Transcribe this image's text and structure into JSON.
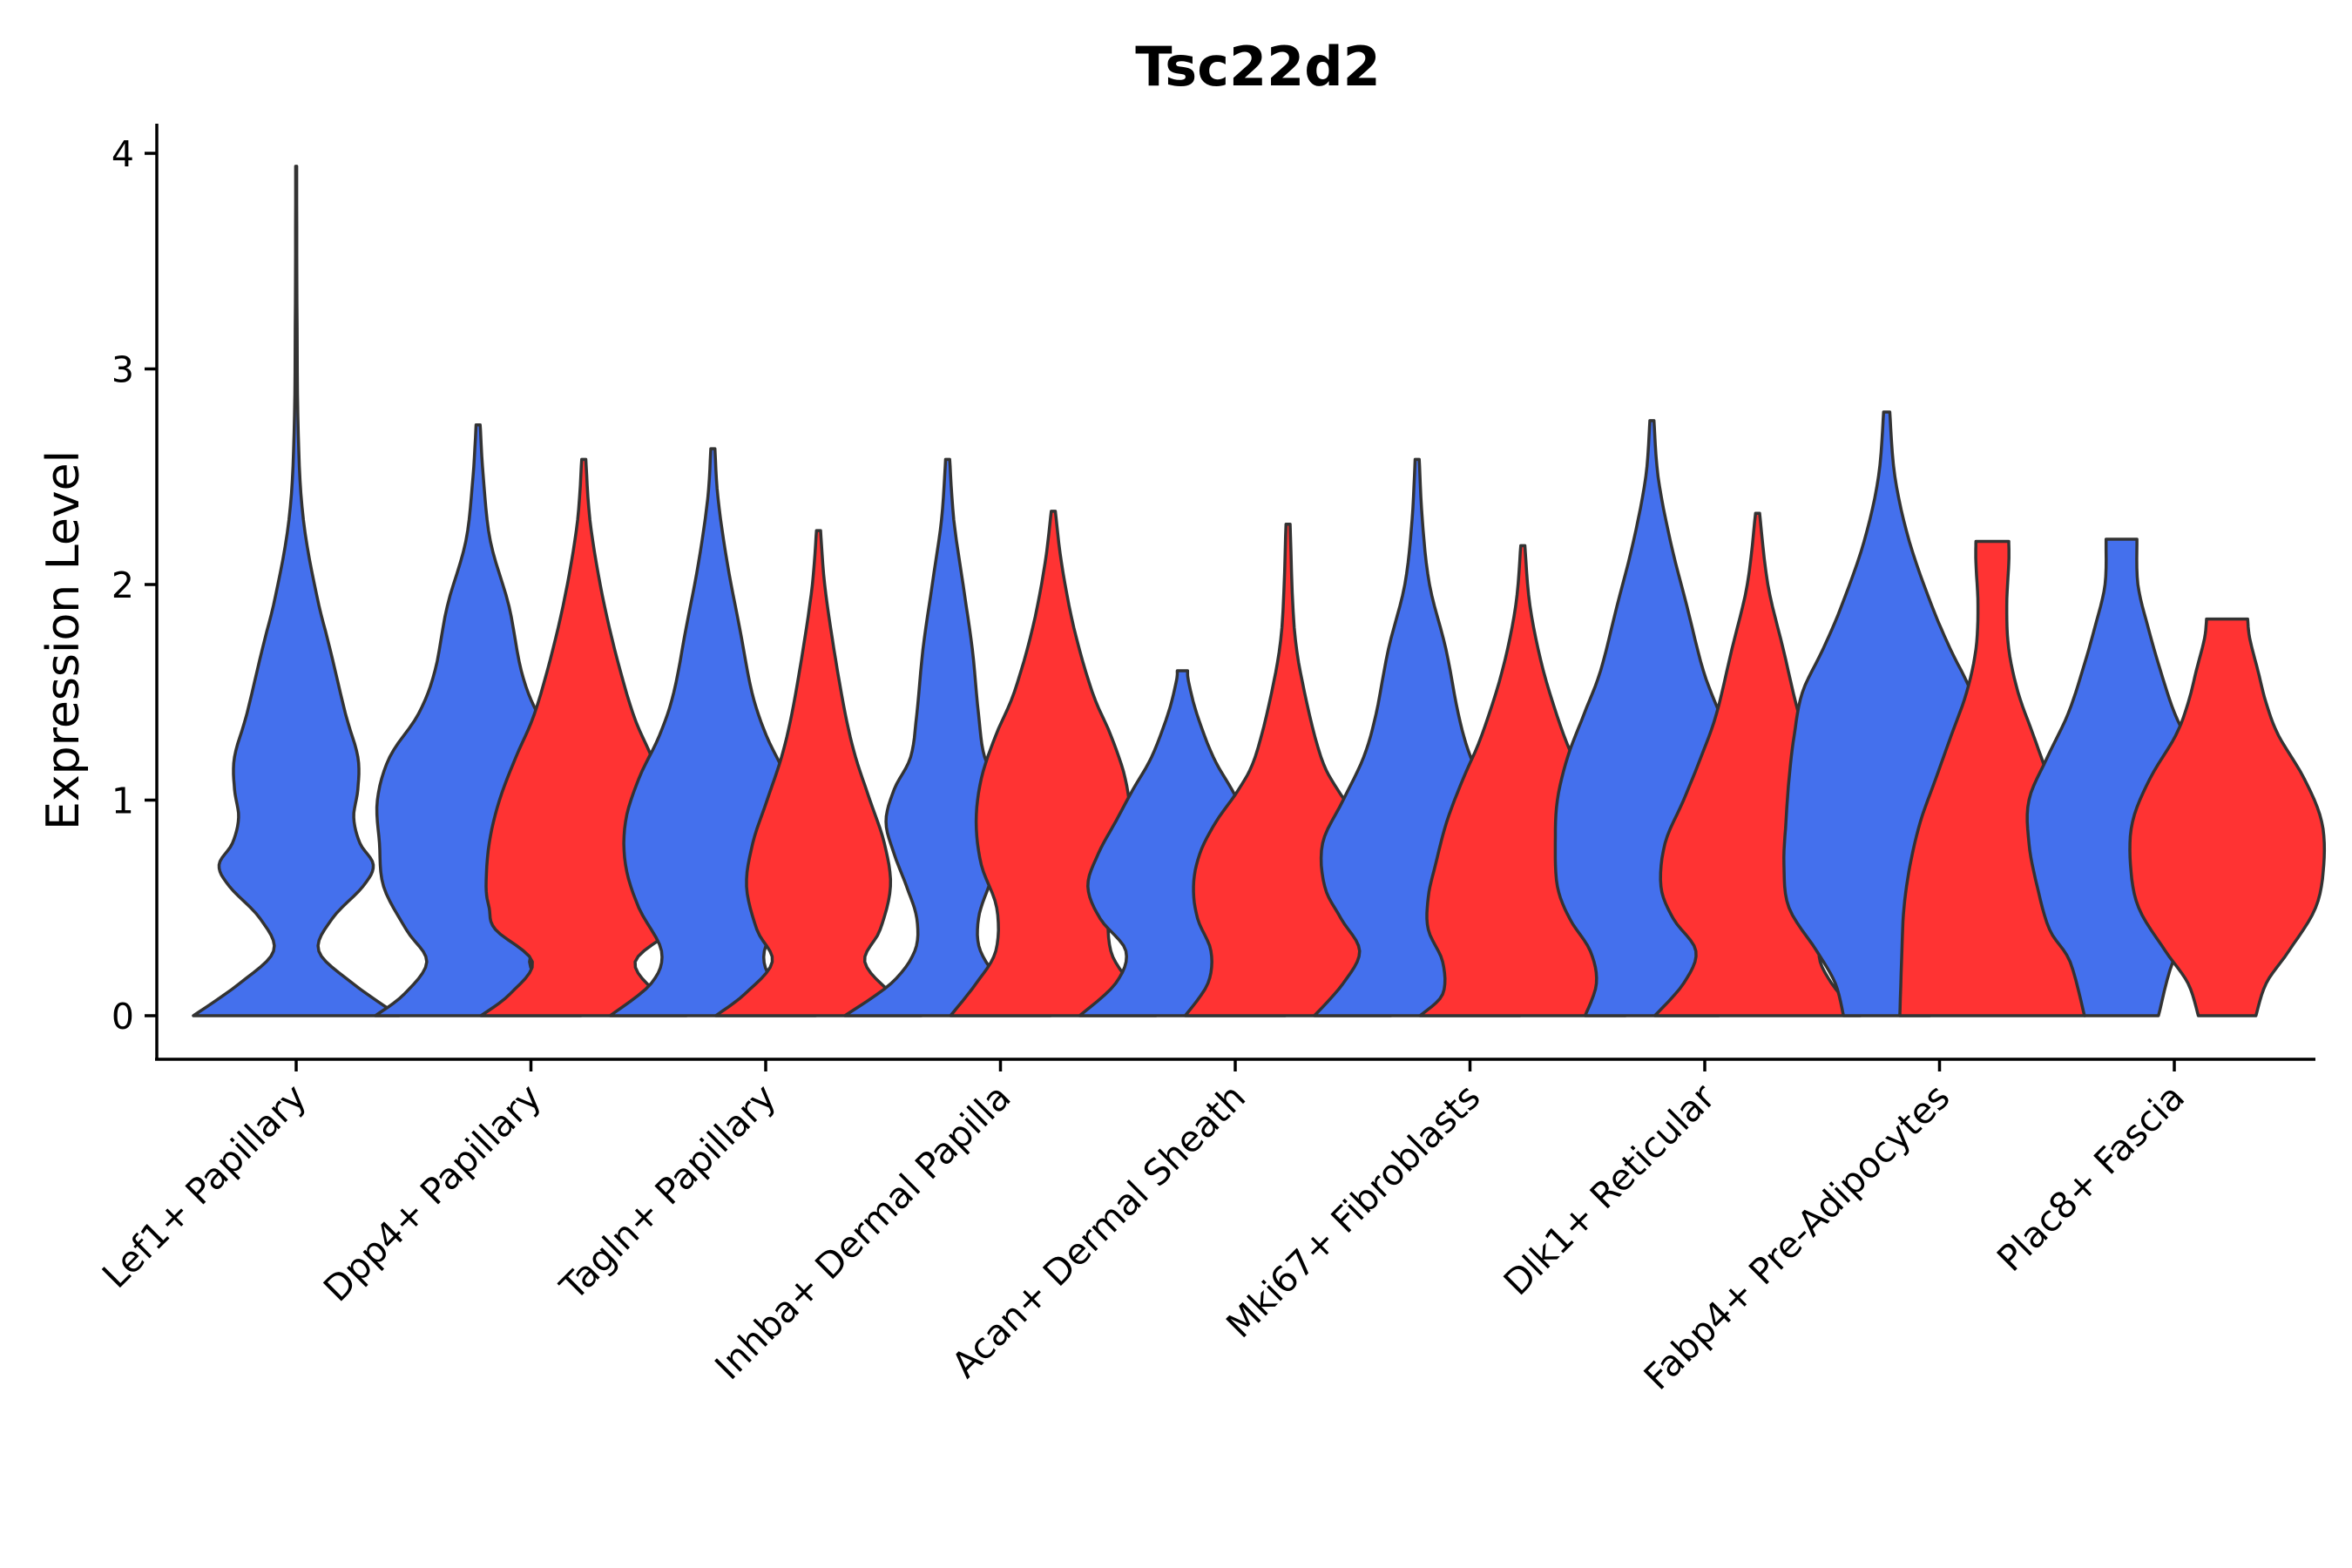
{
  "chart_data": {
    "type": "violin",
    "title": "Tsc22d2",
    "xlabel": "",
    "ylabel": "Expression Level",
    "ylim": [
      -0.2,
      4.1
    ],
    "yticks": [
      0,
      1,
      2,
      3,
      4
    ],
    "categories": [
      "Lef1+ Papillary",
      "Dpp4+ Papillary",
      "Tagln+ Papillary",
      "Inhba+ Dermal Papilla",
      "Acan+ Dermal Sheath",
      "Mki67+ Fibroblasts",
      "Dlk1+ Reticular",
      "Fabp4+ Pre-Adipocytes",
      "Plac8+ Fascia"
    ],
    "colors": {
      "blue": "#4470ED",
      "red": "#FF3333"
    },
    "grid": false,
    "legend": "none",
    "violins": [
      {
        "category_index": 0,
        "offset": 0.0,
        "color": "blue",
        "ymax": 3.94,
        "profile": [
          [
            0,
            1.0
          ],
          [
            0.15,
            0.55
          ],
          [
            0.3,
            0.22
          ],
          [
            0.45,
            0.35
          ],
          [
            0.6,
            0.65
          ],
          [
            0.7,
            0.75
          ],
          [
            0.8,
            0.62
          ],
          [
            0.92,
            0.56
          ],
          [
            1.05,
            0.6
          ],
          [
            1.2,
            0.6
          ],
          [
            1.4,
            0.48
          ],
          [
            1.7,
            0.33
          ],
          [
            1.95,
            0.2
          ],
          [
            2.3,
            0.07
          ],
          [
            2.7,
            0.02
          ],
          [
            3.3,
            0.008
          ],
          [
            3.94,
            0.005
          ]
        ]
      },
      {
        "category_index": 1,
        "offset": -0.225,
        "color": "blue",
        "ymax": 2.74,
        "profile": [
          [
            0,
            1.0
          ],
          [
            0.1,
            0.72
          ],
          [
            0.25,
            0.5
          ],
          [
            0.4,
            0.7
          ],
          [
            0.6,
            0.92
          ],
          [
            0.8,
            0.96
          ],
          [
            1.0,
            0.98
          ],
          [
            1.2,
            0.86
          ],
          [
            1.4,
            0.58
          ],
          [
            1.6,
            0.42
          ],
          [
            1.9,
            0.3
          ],
          [
            2.2,
            0.12
          ],
          [
            2.5,
            0.05
          ],
          [
            2.74,
            0.02
          ]
        ]
      },
      {
        "category_index": 1,
        "offset": 0.225,
        "color": "red",
        "ymax": 2.58,
        "profile": [
          [
            0,
            1.0
          ],
          [
            0.1,
            0.72
          ],
          [
            0.25,
            0.5
          ],
          [
            0.4,
            0.86
          ],
          [
            0.5,
            0.92
          ],
          [
            0.6,
            0.95
          ],
          [
            0.8,
            0.92
          ],
          [
            1.0,
            0.82
          ],
          [
            1.2,
            0.66
          ],
          [
            1.4,
            0.48
          ],
          [
            1.7,
            0.3
          ],
          [
            2.0,
            0.16
          ],
          [
            2.3,
            0.06
          ],
          [
            2.58,
            0.02
          ]
        ]
      },
      {
        "category_index": 2,
        "offset": -0.225,
        "color": "blue",
        "ymax": 2.63,
        "profile": [
          [
            0,
            1.0
          ],
          [
            0.15,
            0.6
          ],
          [
            0.3,
            0.5
          ],
          [
            0.5,
            0.72
          ],
          [
            0.7,
            0.85
          ],
          [
            0.9,
            0.85
          ],
          [
            1.1,
            0.72
          ],
          [
            1.3,
            0.52
          ],
          [
            1.5,
            0.38
          ],
          [
            1.8,
            0.26
          ],
          [
            2.1,
            0.14
          ],
          [
            2.4,
            0.05
          ],
          [
            2.63,
            0.02
          ]
        ]
      },
      {
        "category_index": 2,
        "offset": 0.225,
        "color": "red",
        "ymax": 2.25,
        "profile": [
          [
            0,
            1.0
          ],
          [
            0.1,
            0.72
          ],
          [
            0.25,
            0.45
          ],
          [
            0.4,
            0.6
          ],
          [
            0.6,
            0.7
          ],
          [
            0.8,
            0.64
          ],
          [
            1.0,
            0.5
          ],
          [
            1.2,
            0.36
          ],
          [
            1.4,
            0.26
          ],
          [
            1.7,
            0.15
          ],
          [
            2.0,
            0.06
          ],
          [
            2.25,
            0.02
          ]
        ]
      },
      {
        "category_index": 3,
        "offset": -0.225,
        "color": "blue",
        "ymax": 2.58,
        "profile": [
          [
            0,
            1.0
          ],
          [
            0.15,
            0.55
          ],
          [
            0.3,
            0.32
          ],
          [
            0.45,
            0.3
          ],
          [
            0.6,
            0.4
          ],
          [
            0.75,
            0.52
          ],
          [
            0.9,
            0.6
          ],
          [
            1.05,
            0.52
          ],
          [
            1.2,
            0.36
          ],
          [
            1.4,
            0.3
          ],
          [
            1.7,
            0.24
          ],
          [
            2.0,
            0.15
          ],
          [
            2.3,
            0.06
          ],
          [
            2.58,
            0.02
          ]
        ]
      },
      {
        "category_index": 3,
        "offset": 0.225,
        "color": "red",
        "ymax": 2.34,
        "profile": [
          [
            0,
            1.0
          ],
          [
            0.15,
            0.75
          ],
          [
            0.3,
            0.56
          ],
          [
            0.5,
            0.55
          ],
          [
            0.7,
            0.7
          ],
          [
            0.9,
            0.75
          ],
          [
            1.1,
            0.7
          ],
          [
            1.3,
            0.56
          ],
          [
            1.5,
            0.38
          ],
          [
            1.8,
            0.2
          ],
          [
            2.1,
            0.08
          ],
          [
            2.34,
            0.02
          ]
        ]
      },
      {
        "category_index": 4,
        "offset": -0.225,
        "color": "blue",
        "ymax": 1.6,
        "profile": [
          [
            0,
            1.0
          ],
          [
            0.15,
            0.65
          ],
          [
            0.3,
            0.55
          ],
          [
            0.45,
            0.8
          ],
          [
            0.6,
            0.92
          ],
          [
            0.75,
            0.82
          ],
          [
            0.9,
            0.65
          ],
          [
            1.05,
            0.48
          ],
          [
            1.2,
            0.3
          ],
          [
            1.4,
            0.14
          ],
          [
            1.55,
            0.06
          ],
          [
            1.6,
            0.05
          ]
        ]
      },
      {
        "category_index": 4,
        "offset": 0.225,
        "color": "red",
        "ymax": 2.28,
        "profile": [
          [
            0,
            1.0
          ],
          [
            0.15,
            0.78
          ],
          [
            0.3,
            0.75
          ],
          [
            0.45,
            0.88
          ],
          [
            0.6,
            0.92
          ],
          [
            0.75,
            0.86
          ],
          [
            0.9,
            0.7
          ],
          [
            1.05,
            0.48
          ],
          [
            1.2,
            0.32
          ],
          [
            1.5,
            0.16
          ],
          [
            1.8,
            0.06
          ],
          [
            2.28,
            0.02
          ]
        ]
      },
      {
        "category_index": 5,
        "offset": -0.225,
        "color": "blue",
        "ymax": 2.58,
        "profile": [
          [
            0,
            1.0
          ],
          [
            0.15,
            0.72
          ],
          [
            0.3,
            0.56
          ],
          [
            0.45,
            0.74
          ],
          [
            0.6,
            0.9
          ],
          [
            0.8,
            0.92
          ],
          [
            1.0,
            0.72
          ],
          [
            1.2,
            0.52
          ],
          [
            1.4,
            0.4
          ],
          [
            1.7,
            0.28
          ],
          [
            2.0,
            0.12
          ],
          [
            2.3,
            0.05
          ],
          [
            2.58,
            0.02
          ]
        ]
      },
      {
        "category_index": 5,
        "offset": 0.225,
        "color": "red",
        "ymax": 2.18,
        "profile": [
          [
            0,
            1.0
          ],
          [
            0.1,
            0.78
          ],
          [
            0.25,
            0.78
          ],
          [
            0.4,
            0.92
          ],
          [
            0.55,
            0.92
          ],
          [
            0.7,
            0.85
          ],
          [
            0.9,
            0.74
          ],
          [
            1.1,
            0.58
          ],
          [
            1.3,
            0.4
          ],
          [
            1.6,
            0.2
          ],
          [
            1.9,
            0.07
          ],
          [
            2.18,
            0.02
          ]
        ]
      },
      {
        "category_index": 6,
        "offset": -0.225,
        "color": "blue",
        "ymax": 2.76,
        "profile": [
          [
            0,
            0.65
          ],
          [
            0.15,
            0.54
          ],
          [
            0.3,
            0.6
          ],
          [
            0.45,
            0.8
          ],
          [
            0.6,
            0.92
          ],
          [
            0.8,
            0.94
          ],
          [
            1.0,
            0.92
          ],
          [
            1.2,
            0.82
          ],
          [
            1.4,
            0.66
          ],
          [
            1.6,
            0.5
          ],
          [
            1.9,
            0.34
          ],
          [
            2.2,
            0.18
          ],
          [
            2.5,
            0.06
          ],
          [
            2.76,
            0.02
          ]
        ]
      },
      {
        "category_index": 6,
        "offset": 0.225,
        "color": "red",
        "ymax": 2.33,
        "profile": [
          [
            0,
            1.0
          ],
          [
            0.15,
            0.72
          ],
          [
            0.3,
            0.6
          ],
          [
            0.45,
            0.82
          ],
          [
            0.6,
            0.94
          ],
          [
            0.8,
            0.9
          ],
          [
            1.0,
            0.72
          ],
          [
            1.2,
            0.55
          ],
          [
            1.4,
            0.4
          ],
          [
            1.7,
            0.25
          ],
          [
            2.0,
            0.1
          ],
          [
            2.33,
            0.02
          ]
        ]
      },
      {
        "category_index": 7,
        "offset": -0.225,
        "color": "blue",
        "ymax": 2.8,
        "profile": [
          [
            0,
            0.42
          ],
          [
            0.15,
            0.5
          ],
          [
            0.3,
            0.68
          ],
          [
            0.5,
            0.95
          ],
          [
            0.7,
            1.0
          ],
          [
            0.9,
            0.98
          ],
          [
            1.1,
            0.95
          ],
          [
            1.3,
            0.9
          ],
          [
            1.5,
            0.82
          ],
          [
            1.7,
            0.62
          ],
          [
            1.9,
            0.44
          ],
          [
            2.2,
            0.22
          ],
          [
            2.5,
            0.08
          ],
          [
            2.8,
            0.03
          ]
        ]
      },
      {
        "category_index": 7,
        "offset": 0.225,
        "color": "red",
        "ymax": 2.2,
        "profile": [
          [
            0,
            0.9
          ],
          [
            0.3,
            0.88
          ],
          [
            0.5,
            0.86
          ],
          [
            0.7,
            0.8
          ],
          [
            0.9,
            0.7
          ],
          [
            1.1,
            0.55
          ],
          [
            1.3,
            0.4
          ],
          [
            1.5,
            0.25
          ],
          [
            1.7,
            0.16
          ],
          [
            1.9,
            0.14
          ],
          [
            2.1,
            0.16
          ],
          [
            2.2,
            0.16
          ]
        ]
      },
      {
        "category_index": 8,
        "offset": -0.225,
        "color": "blue",
        "ymax": 2.21,
        "profile": [
          [
            0,
            0.36
          ],
          [
            0.25,
            0.5
          ],
          [
            0.4,
            0.7
          ],
          [
            0.6,
            0.82
          ],
          [
            0.8,
            0.9
          ],
          [
            1.0,
            0.9
          ],
          [
            1.2,
            0.72
          ],
          [
            1.4,
            0.52
          ],
          [
            1.6,
            0.38
          ],
          [
            1.8,
            0.26
          ],
          [
            2.0,
            0.16
          ],
          [
            2.21,
            0.15
          ]
        ]
      },
      {
        "category_index": 8,
        "offset": 0.225,
        "color": "red",
        "ymax": 1.84,
        "profile": [
          [
            0,
            0.28
          ],
          [
            0.15,
            0.38
          ],
          [
            0.3,
            0.6
          ],
          [
            0.5,
            0.86
          ],
          [
            0.7,
            0.94
          ],
          [
            0.9,
            0.92
          ],
          [
            1.1,
            0.75
          ],
          [
            1.3,
            0.5
          ],
          [
            1.45,
            0.38
          ],
          [
            1.6,
            0.3
          ],
          [
            1.75,
            0.22
          ],
          [
            1.84,
            0.2
          ]
        ]
      }
    ]
  }
}
